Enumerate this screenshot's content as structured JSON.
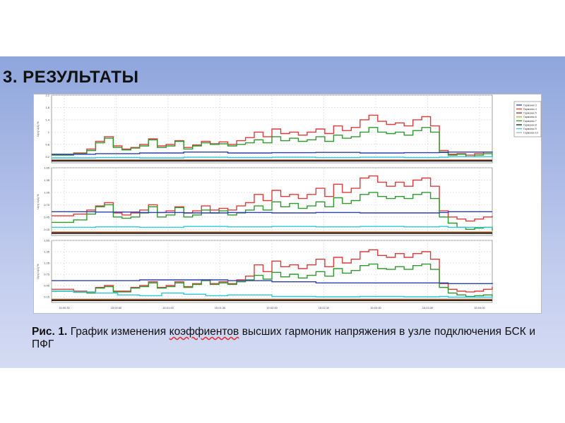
{
  "slide": {
    "title": "3. РЕЗУЛЬТАТЫ"
  },
  "caption": {
    "label": "Рис. 1.",
    "text_before": " График изменения ",
    "misspelled": "коэффиентов",
    "text_after": " высших гармоник напряжения в узле подключения БСК и ПФГ"
  },
  "colors": {
    "band_top": "#8fa6dc",
    "band_bottom": "#d4dbf3",
    "misspell_underline": "#e03030"
  },
  "chart_data": {
    "type": "line",
    "x_ticks": [
      "15:00:30",
      "15:00:00",
      "15:01:00",
      "15:01:30",
      "15:02:00",
      "15:02:30",
      "15:03:00",
      "15:03:30",
      "15:04:00"
    ],
    "legend": {
      "position": "right",
      "items": [
        {
          "label": "Гармоник 3",
          "color": "#2b3fb0"
        },
        {
          "label": "Гармоник 4",
          "color": "#e03a3a"
        },
        {
          "label": "Гармоник 5",
          "color": "#8b2f2f"
        },
        {
          "label": "Гармоник 6",
          "color": "#c9a020"
        },
        {
          "label": "Гармоник 7",
          "color": "#2e9a2e"
        },
        {
          "label": "Гармоник 8",
          "color": "#1a1a1a"
        },
        {
          "label": "Гармоник 9",
          "color": "#30c8d8"
        },
        {
          "label": "Гармоник 10",
          "color": "#b0b0b0"
        }
      ]
    },
    "x_domain": [
      0,
      100
    ],
    "grid": true,
    "panels": [
      {
        "ylabel": "U(n) U(1) %",
        "y_ticks": [
          0.2,
          0.6,
          1.0,
          1.4,
          1.8,
          2.2
        ],
        "ylim": [
          0,
          2.2
        ],
        "series": [
          {
            "color": "#e03a3a",
            "x": [
              0,
              5,
              8,
              10,
              12,
              14,
              16,
              18,
              20,
              22,
              24,
              26,
              28,
              30,
              32,
              34,
              36,
              38,
              40,
              42,
              44,
              46,
              48,
              50,
              52,
              54,
              56,
              58,
              60,
              62,
              64,
              66,
              68,
              70,
              72,
              74,
              76,
              78,
              80,
              82,
              84,
              86,
              88,
              90,
              92,
              94,
              96,
              98,
              100
            ],
            "y": [
              0.28,
              0.32,
              0.45,
              0.7,
              0.85,
              0.55,
              0.45,
              0.5,
              0.6,
              0.78,
              0.55,
              0.6,
              0.72,
              0.5,
              0.58,
              0.7,
              0.62,
              0.68,
              0.6,
              0.72,
              0.82,
              1.0,
              0.85,
              1.1,
              0.95,
              1.0,
              0.9,
              1.0,
              1.1,
              0.95,
              1.2,
              1.05,
              1.15,
              1.4,
              1.55,
              1.35,
              1.25,
              1.3,
              1.2,
              1.4,
              1.5,
              1.2,
              0.4,
              0.28,
              0.3,
              0.25,
              0.3,
              0.35,
              0.33
            ]
          },
          {
            "color": "#2e9a2e",
            "x": [
              0,
              5,
              8,
              10,
              12,
              14,
              16,
              18,
              20,
              22,
              24,
              26,
              28,
              30,
              32,
              34,
              36,
              38,
              40,
              42,
              44,
              46,
              48,
              50,
              52,
              54,
              56,
              58,
              60,
              62,
              64,
              66,
              68,
              70,
              72,
              74,
              76,
              78,
              80,
              82,
              84,
              86,
              88,
              90,
              92,
              94,
              96,
              98,
              100
            ],
            "y": [
              0.25,
              0.3,
              0.4,
              0.65,
              0.8,
              0.5,
              0.42,
              0.48,
              0.55,
              0.75,
              0.5,
              0.55,
              0.7,
              0.45,
              0.55,
              0.65,
              0.6,
              0.62,
              0.55,
              0.6,
              0.65,
              0.75,
              0.65,
              0.85,
              0.72,
              0.8,
              0.7,
              0.75,
              0.85,
              0.7,
              0.9,
              0.8,
              0.85,
              1.0,
              1.15,
              1.0,
              0.95,
              1.0,
              0.9,
              1.05,
              1.15,
              1.0,
              0.35,
              0.25,
              0.28,
              0.2,
              0.25,
              0.3,
              0.2
            ]
          },
          {
            "color": "#2b3fb0",
            "x": [
              0,
              10,
              20,
              30,
              40,
              50,
              60,
              70,
              80,
              88,
              90,
              100
            ],
            "y": [
              0.28,
              0.3,
              0.32,
              0.35,
              0.32,
              0.33,
              0.34,
              0.32,
              0.33,
              0.34,
              0.35,
              0.36
            ]
          },
          {
            "color": "#30c8d8",
            "x": [
              0,
              10,
              20,
              30,
              40,
              50,
              60,
              70,
              80,
              88,
              90,
              100
            ],
            "y": [
              0.16,
              0.17,
              0.16,
              0.18,
              0.17,
              0.18,
              0.17,
              0.18,
              0.17,
              0.18,
              0.2,
              0.24
            ]
          },
          {
            "color": "#b0b0b0",
            "x": [
              0,
              100
            ],
            "y": [
              0.1,
              0.1
            ]
          },
          {
            "color": "#c9a020",
            "x": [
              0,
              100
            ],
            "y": [
              0.09,
              0.09
            ]
          },
          {
            "color": "#8b2f2f",
            "x": [
              0,
              100
            ],
            "y": [
              0.08,
              0.08
            ]
          },
          {
            "color": "#1a1a1a",
            "x": [
              0,
              100
            ],
            "y": [
              0.06,
              0.06
            ]
          }
        ]
      },
      {
        "ylabel": "U(n) U(1) %",
        "y_ticks": [
          0.15,
          0.45,
          0.75,
          1.05,
          1.35,
          1.65
        ],
        "ylim": [
          0,
          1.65
        ],
        "series": [
          {
            "color": "#e03a3a",
            "x": [
              0,
              5,
              8,
              10,
              12,
              14,
              16,
              18,
              20,
              22,
              24,
              26,
              28,
              30,
              32,
              34,
              36,
              38,
              40,
              42,
              44,
              46,
              48,
              50,
              52,
              54,
              56,
              58,
              60,
              62,
              64,
              66,
              68,
              70,
              72,
              74,
              76,
              78,
              80,
              82,
              84,
              86,
              88,
              90,
              92,
              94,
              96,
              98,
              100
            ],
            "y": [
              0.48,
              0.52,
              0.62,
              0.72,
              0.8,
              0.55,
              0.5,
              0.55,
              0.62,
              0.75,
              0.56,
              0.6,
              0.7,
              0.55,
              0.6,
              0.72,
              0.62,
              0.66,
              0.62,
              0.72,
              0.8,
              1.0,
              0.85,
              1.1,
              0.95,
              1.0,
              0.9,
              1.0,
              1.15,
              0.95,
              1.25,
              1.05,
              1.15,
              1.4,
              1.45,
              1.3,
              1.2,
              1.3,
              1.2,
              1.35,
              1.4,
              1.2,
              0.6,
              0.45,
              0.4,
              0.35,
              0.4,
              0.45,
              0.48
            ]
          },
          {
            "color": "#2e9a2e",
            "x": [
              0,
              5,
              8,
              10,
              12,
              14,
              16,
              18,
              20,
              22,
              24,
              26,
              28,
              30,
              32,
              34,
              36,
              38,
              40,
              42,
              44,
              46,
              48,
              50,
              52,
              54,
              56,
              58,
              60,
              62,
              64,
              66,
              68,
              70,
              72,
              74,
              76,
              78,
              80,
              82,
              84,
              86,
              88,
              90,
              92,
              94,
              96,
              98,
              100
            ],
            "y": [
              0.32,
              0.38,
              0.52,
              0.7,
              0.75,
              0.45,
              0.42,
              0.45,
              0.55,
              0.7,
              0.45,
              0.5,
              0.68,
              0.45,
              0.5,
              0.62,
              0.55,
              0.6,
              0.5,
              0.55,
              0.62,
              0.72,
              0.62,
              0.82,
              0.7,
              0.78,
              0.66,
              0.72,
              0.82,
              0.7,
              0.92,
              0.78,
              0.85,
              1.0,
              1.05,
              0.95,
              0.9,
              0.95,
              0.9,
              1.0,
              1.05,
              0.9,
              0.45,
              0.3,
              0.2,
              0.15,
              0.18,
              0.2,
              0.12
            ]
          },
          {
            "color": "#2b3fb0",
            "x": [
              0,
              10,
              20,
              30,
              40,
              50,
              60,
              70,
              80,
              88,
              90,
              100
            ],
            "y": [
              0.58,
              0.57,
              0.56,
              0.55,
              0.56,
              0.55,
              0.56,
              0.55,
              0.55,
              0.56,
              0.58,
              0.58
            ]
          },
          {
            "color": "#30c8d8",
            "x": [
              0,
              10,
              20,
              30,
              40,
              50,
              60,
              70,
              80,
              88,
              90,
              100
            ],
            "y": [
              0.2,
              0.21,
              0.2,
              0.22,
              0.21,
              0.22,
              0.21,
              0.22,
              0.21,
              0.22,
              0.2,
              0.18
            ]
          },
          {
            "color": "#b0b0b0",
            "x": [
              0,
              100
            ],
            "y": [
              0.09,
              0.09
            ]
          },
          {
            "color": "#c9a020",
            "x": [
              0,
              100
            ],
            "y": [
              0.08,
              0.08
            ]
          },
          {
            "color": "#8b2f2f",
            "x": [
              0,
              100
            ],
            "y": [
              0.07,
              0.07
            ]
          },
          {
            "color": "#1a1a1a",
            "x": [
              0,
              100
            ],
            "y": [
              0.05,
              0.05
            ]
          }
        ]
      },
      {
        "ylabel": "U(n) U(1) %",
        "y_ticks": [
          0.15,
          0.45,
          0.75,
          1.05,
          1.35,
          1.65
        ],
        "ylim": [
          0,
          1.65
        ],
        "series": [
          {
            "color": "#e03a3a",
            "x": [
              0,
              5,
              8,
              10,
              12,
              14,
              16,
              18,
              20,
              22,
              24,
              26,
              28,
              30,
              32,
              34,
              36,
              38,
              40,
              42,
              44,
              46,
              48,
              50,
              52,
              54,
              56,
              58,
              60,
              62,
              64,
              66,
              68,
              70,
              72,
              74,
              76,
              78,
              80,
              82,
              84,
              86,
              88,
              90,
              92,
              94,
              96,
              98,
              100
            ],
            "y": [
              0.35,
              0.3,
              0.28,
              0.4,
              0.45,
              0.3,
              0.3,
              0.4,
              0.45,
              0.55,
              0.4,
              0.45,
              0.55,
              0.42,
              0.5,
              0.6,
              0.5,
              0.55,
              0.5,
              0.6,
              0.7,
              1.0,
              0.82,
              1.1,
              0.95,
              1.0,
              0.9,
              1.0,
              1.15,
              0.95,
              1.2,
              1.05,
              1.15,
              1.35,
              1.4,
              1.25,
              1.2,
              1.3,
              1.2,
              1.3,
              1.35,
              1.15,
              0.5,
              0.35,
              0.3,
              0.28,
              0.3,
              0.35,
              0.42
            ]
          },
          {
            "color": "#2e9a2e",
            "x": [
              0,
              5,
              8,
              10,
              12,
              14,
              16,
              18,
              20,
              22,
              24,
              26,
              28,
              30,
              32,
              34,
              36,
              38,
              40,
              42,
              44,
              46,
              48,
              50,
              52,
              54,
              56,
              58,
              60,
              62,
              64,
              66,
              68,
              70,
              72,
              74,
              76,
              78,
              80,
              82,
              84,
              86,
              88,
              90,
              92,
              94,
              96,
              98,
              100
            ],
            "y": [
              0.3,
              0.27,
              0.25,
              0.38,
              0.42,
              0.28,
              0.28,
              0.38,
              0.42,
              0.52,
              0.38,
              0.42,
              0.52,
              0.4,
              0.48,
              0.58,
              0.48,
              0.52,
              0.48,
              0.55,
              0.6,
              0.72,
              0.62,
              0.8,
              0.68,
              0.75,
              0.65,
              0.72,
              0.82,
              0.7,
              0.9,
              0.78,
              0.85,
              0.98,
              1.02,
              0.9,
              0.88,
              0.95,
              0.88,
              0.98,
              1.02,
              0.88,
              0.4,
              0.25,
              0.2,
              0.16,
              0.18,
              0.2,
              0.16
            ]
          },
          {
            "color": "#2b3fb0",
            "x": [
              0,
              10,
              20,
              30,
              40,
              50,
              60,
              70,
              80,
              88,
              90,
              100
            ],
            "y": [
              0.58,
              0.58,
              0.6,
              0.6,
              0.58,
              0.55,
              0.52,
              0.52,
              0.52,
              0.52,
              0.5,
              0.52
            ]
          },
          {
            "color": "#30c8d8",
            "x": [
              0,
              5,
              10,
              15,
              20,
              25,
              30,
              35,
              40,
              50,
              60,
              70,
              80,
              88,
              90,
              100
            ],
            "y": [
              0.3,
              0.28,
              0.25,
              0.2,
              0.18,
              0.25,
              0.22,
              0.18,
              0.2,
              0.16,
              0.15,
              0.16,
              0.15,
              0.16,
              0.14,
              0.12
            ]
          },
          {
            "color": "#b0b0b0",
            "x": [
              0,
              100
            ],
            "y": [
              0.09,
              0.09
            ]
          },
          {
            "color": "#c9a020",
            "x": [
              0,
              100
            ],
            "y": [
              0.08,
              0.08
            ]
          },
          {
            "color": "#8b2f2f",
            "x": [
              0,
              100
            ],
            "y": [
              0.07,
              0.07
            ]
          },
          {
            "color": "#1a1a1a",
            "x": [
              0,
              100
            ],
            "y": [
              0.05,
              0.05
            ]
          }
        ]
      }
    ]
  }
}
